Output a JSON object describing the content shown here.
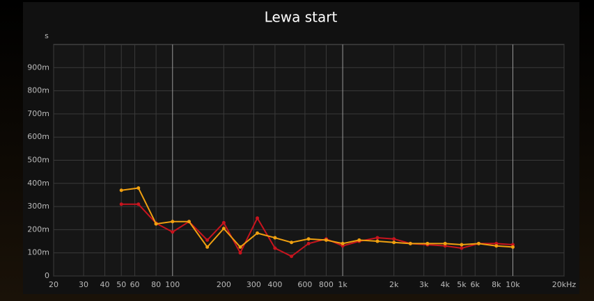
{
  "chart_data": {
    "type": "line",
    "title": "Lewa start",
    "y_label": "s",
    "x": [
      50,
      63,
      80,
      100,
      125,
      160,
      200,
      250,
      315,
      400,
      500,
      630,
      800,
      1000,
      1250,
      1600,
      2000,
      2500,
      3150,
      4000,
      5000,
      6300,
      8000,
      10000
    ],
    "series": [
      {
        "color": "#c8141e",
        "values": [
          0.31,
          0.31,
          0.228,
          0.19,
          0.235,
          0.155,
          0.23,
          0.1,
          0.25,
          0.12,
          0.085,
          0.14,
          0.16,
          0.13,
          0.15,
          0.165,
          0.16,
          0.14,
          0.135,
          0.13,
          0.12,
          0.14,
          0.14,
          0.135
        ]
      },
      {
        "color": "#f0a010",
        "values": [
          0.37,
          0.38,
          0.225,
          0.235,
          0.235,
          0.125,
          0.205,
          0.125,
          0.185,
          0.165,
          0.145,
          0.16,
          0.155,
          0.14,
          0.155,
          0.15,
          0.145,
          0.14,
          0.14,
          0.14,
          0.135,
          0.14,
          0.13,
          0.125
        ]
      }
    ],
    "x_log": true,
    "xlim": [
      20,
      20000
    ],
    "xticks": [
      20,
      30,
      40,
      50,
      60,
      80,
      100,
      200,
      300,
      400,
      600,
      800,
      {
        "value": 1000,
        "label": "1k"
      },
      {
        "value": 2000,
        "label": "2k"
      },
      {
        "value": 3000,
        "label": "3k"
      },
      {
        "value": 4000,
        "label": "4k"
      },
      {
        "value": 5000,
        "label": "5k"
      },
      {
        "value": 6000,
        "label": "6k"
      },
      {
        "value": 8000,
        "label": "8k"
      },
      {
        "value": 10000,
        "label": "10k"
      },
      {
        "value": 20000,
        "label": "20kHz"
      }
    ],
    "ylim": [
      0,
      1
    ],
    "yticks": [
      0,
      {
        "value": 0.1,
        "label": "100m"
      },
      {
        "value": 0.2,
        "label": "200m"
      },
      {
        "value": 0.3,
        "label": "300m"
      },
      {
        "value": 0.4,
        "label": "400m"
      },
      {
        "value": 0.5,
        "label": "500m"
      },
      {
        "value": 0.6,
        "label": "600m"
      },
      {
        "value": 0.7,
        "label": "700m"
      },
      {
        "value": 0.8,
        "label": "800m"
      },
      {
        "value": 0.9,
        "label": "900m"
      }
    ],
    "grid": true
  }
}
